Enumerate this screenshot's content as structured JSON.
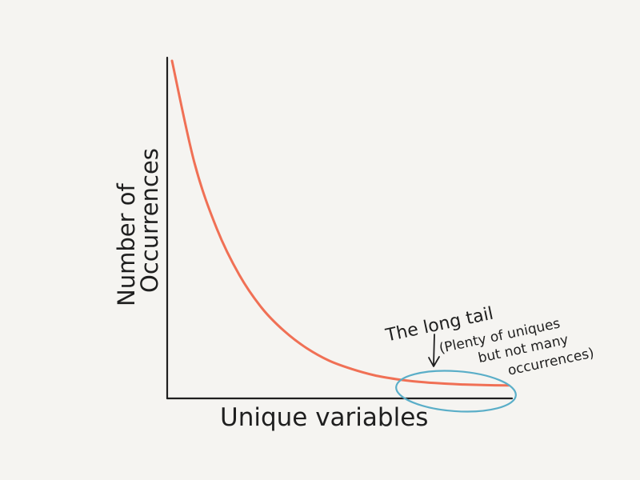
{
  "chart_data": {
    "type": "line",
    "title": "",
    "xlabel": "Unique variables",
    "ylabel": "Number of\nOccurrences",
    "grid": false,
    "series": [
      {
        "values": [
          100,
          69,
          49,
          35,
          25,
          18,
          12.8,
          9,
          6.5,
          4.6,
          3.4,
          2.6,
          2.1,
          1.8,
          1.6,
          1.5
        ],
        "x": [
          0,
          1,
          2,
          3,
          4,
          5,
          6,
          7,
          8,
          9,
          10,
          11,
          12,
          13,
          14,
          15
        ]
      }
    ],
    "annotation": {
      "line1": "The long tail",
      "line2": "(Plenty of uniques",
      "line3": "but not many",
      "line4": "occurrences)"
    },
    "colors": {
      "curve": "#f07055",
      "ellipse": "#5aaec8",
      "axes": "#1f1f1f"
    }
  }
}
